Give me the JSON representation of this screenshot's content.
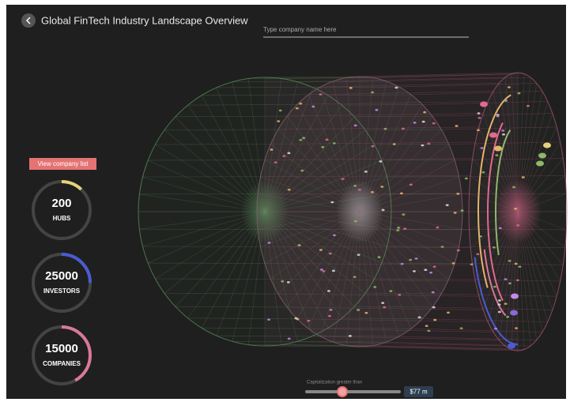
{
  "header": {
    "title": "Global FinTech Industry Landscape Overview",
    "search_placeholder": "Type company name here"
  },
  "sidebar": {
    "button": "View company list",
    "stats": [
      {
        "value": "200",
        "label": "HUBS"
      },
      {
        "value": "25000",
        "label": "INVESTORS"
      },
      {
        "value": "15000",
        "label": "COMPANIES"
      }
    ]
  },
  "slider": {
    "label": "Capitalization greater than",
    "value": "$77 m"
  }
}
